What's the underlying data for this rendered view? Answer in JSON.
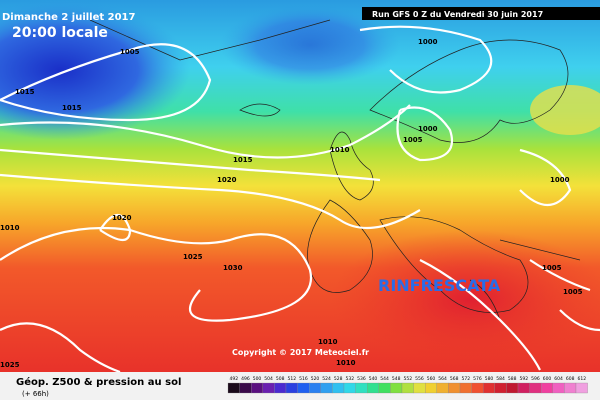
{
  "header": {
    "date": "Dimanche 2 juillet 2017",
    "time": "20:00 locale",
    "run": "Run GFS 0 Z du Vendredi 30 juin 2017"
  },
  "isobars": [
    "1005",
    "1000",
    "1015",
    "1015",
    "1000",
    "1005",
    "1010",
    "1015",
    "1020",
    "1000",
    "1020",
    "1010",
    "1025",
    "1030",
    "1005",
    "1005",
    "1010",
    "1010",
    "1025"
  ],
  "annotation": "RINFRESCATA",
  "copyright": "Copyright © 2017 Meteociel.fr",
  "footer": {
    "title": "Géop. Z500 & pression au sol",
    "lead": "(+ 66h)"
  },
  "colorbar": {
    "labels": [
      492,
      496,
      500,
      504,
      508,
      512,
      516,
      520,
      524,
      528,
      532,
      536,
      540,
      544,
      548,
      552,
      556,
      560,
      564,
      568,
      572,
      576,
      580,
      584,
      588,
      592,
      596,
      600,
      604,
      608,
      612
    ]
  }
}
